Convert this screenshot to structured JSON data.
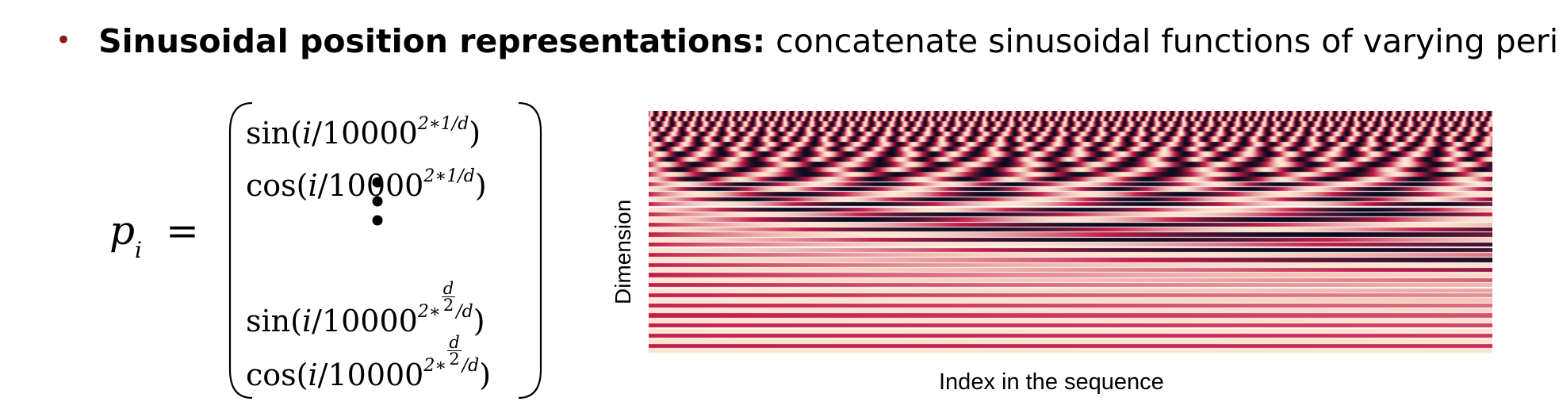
{
  "bullet": {
    "bold": "Sinusoidal position representations:",
    "rest": " concatenate sinusoidal functions of varying periods:"
  },
  "formula": {
    "lhs_var": "p",
    "lhs_sub": "i",
    "equals": "=",
    "rows": [
      {
        "fn": "sin",
        "arg": "i",
        "base": "10000",
        "exp": "2∗1/d"
      },
      {
        "fn": "cos",
        "arg": "i",
        "base": "10000",
        "exp": "2∗1/d"
      },
      {
        "fn": "sin",
        "arg": "i",
        "base": "10000",
        "exp_num": "d",
        "exp_den": "2",
        "exp_pre": "2∗",
        "exp_post": "/d"
      },
      {
        "fn": "cos",
        "arg": "i",
        "base": "10000",
        "exp_num": "d",
        "exp_den": "2",
        "exp_pre": "2∗",
        "exp_post": "/d"
      }
    ]
  },
  "chart_data": {
    "type": "heatmap",
    "xlabel": "Index in the sequence",
    "ylabel": "Dimension",
    "title": "",
    "colormap": "rocket",
    "colors": {
      "low": "#0d0a1f",
      "mid": "#c41f4a",
      "high": "#fde6d0"
    }
  }
}
